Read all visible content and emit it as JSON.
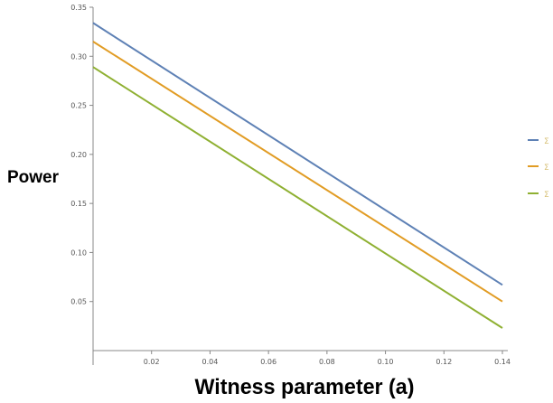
{
  "chart_data": {
    "type": "line",
    "xlabel": "Witness parameter (a)",
    "ylabel": "Power",
    "xlim": [
      0,
      0.14
    ],
    "ylim": [
      0,
      0.35
    ],
    "x_ticks": [
      "0.02",
      "0.04",
      "0.06",
      "0.08",
      "0.10",
      "0.12",
      "0.14"
    ],
    "y_ticks": [
      "0.05",
      "0.10",
      "0.15",
      "0.20",
      "0.25",
      "0.30",
      "0.35"
    ],
    "grid": false,
    "legend_placement": "right",
    "series": [
      {
        "color": "#5e81b5",
        "legend_marker": "Σ",
        "x": [
          0,
          0.14
        ],
        "y": [
          0.334,
          0.067
        ]
      },
      {
        "color": "#e19c24",
        "legend_marker": "Σ",
        "x": [
          0,
          0.14
        ],
        "y": [
          0.315,
          0.05
        ]
      },
      {
        "color": "#8fb032",
        "legend_marker": "Σ",
        "x": [
          0,
          0.14
        ],
        "y": [
          0.289,
          0.023
        ]
      }
    ]
  }
}
